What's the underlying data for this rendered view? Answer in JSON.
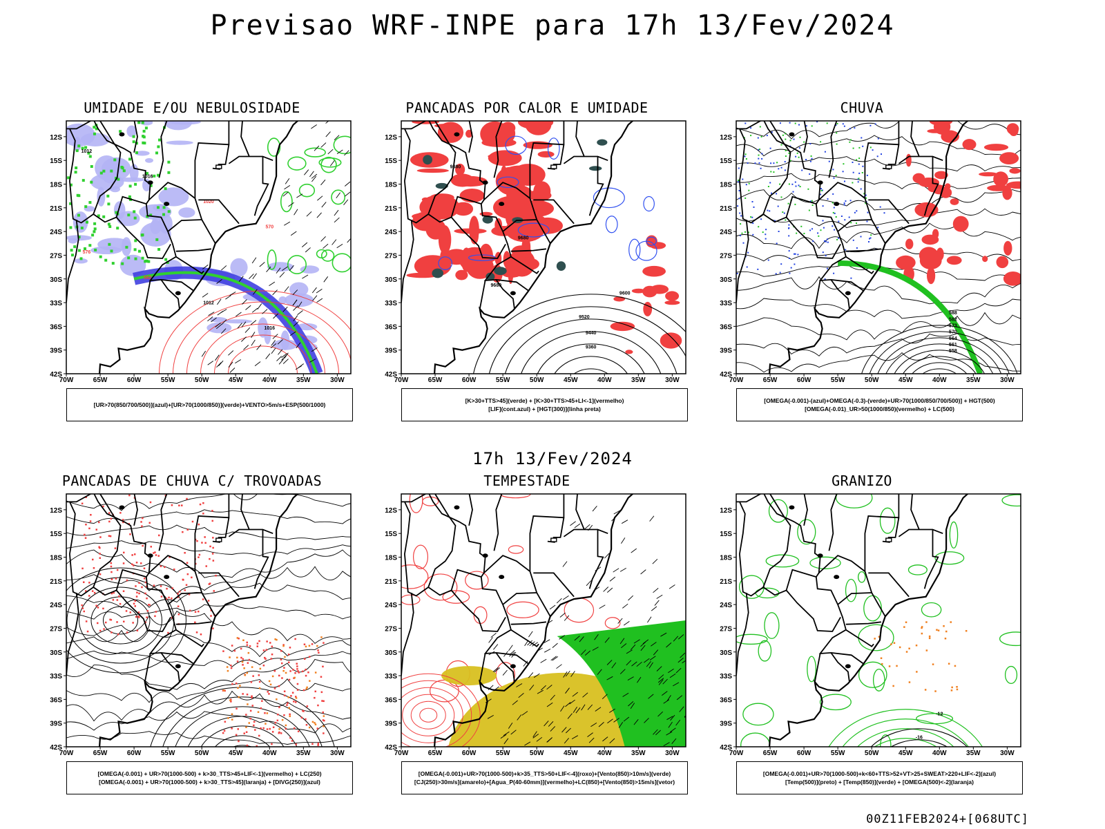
{
  "header": {
    "title": "Previsao WRF-INPE  para 17h 13/Fev/2024",
    "mid_title": "17h 13/Fev/2024",
    "footer": "00Z11FEB2024+[068UTC]"
  },
  "axes": {
    "lat_labels": [
      "12S",
      "15S",
      "18S",
      "21S",
      "24S",
      "27S",
      "30S",
      "33S",
      "36S",
      "39S",
      "42S"
    ],
    "lon_labels": [
      "70W",
      "65W",
      "60W",
      "55W",
      "50W",
      "45W",
      "40W",
      "35W",
      "30W"
    ]
  },
  "panels": [
    {
      "title": "UMIDADE E/OU NEBULOSIDADE",
      "legend": [
        "[UR>70(850/700/500)](azul)+[UR>70(1000/850)](verde)+VENTO>5m/s+ESP(500/1000)"
      ],
      "labels": [
        "1012",
        "1016",
        "1020",
        "570",
        "576",
        "582",
        "1012",
        "1016"
      ],
      "colors": {
        "blue": "#b4b4f5",
        "dark_blue": "#4040e0",
        "green": "#30d030",
        "red": "#f04040"
      }
    },
    {
      "title": "PANCADAS POR CALOR E UMIDADE",
      "legend": [
        "[K>30+TTS>45](verde)  +  [K>30+TTS>45+LI<-1](vermelho)",
        "[LIF](cont.azul)  +  [HGT(300)](linha preta)"
      ],
      "labels": [
        "9680",
        "9680",
        "9680",
        "9600",
        "9520",
        "9440",
        "9360"
      ],
      "colors": {
        "red": "#f04040",
        "dark_green": "#2f4f4f",
        "blue": "#3050f0"
      }
    },
    {
      "title": "CHUVA",
      "legend": [
        "[OMEGA(-0.001)-(azul)+OMEGA(-0.3)-(verde)+UR>70(1000/850/700/500)] + HGT(500)",
        "[OMEGA(-0.01)_UR>50(1000/850)(vermelho) + LC(500)"
      ],
      "labels": [
        "588",
        "582",
        "573",
        "570",
        "564",
        "561",
        "558"
      ],
      "colors": {
        "red": "#f04040",
        "green": "#20c020",
        "blue": "#2040e0"
      }
    },
    {
      "title": "PANCADAS DE CHUVA C/ TROVOADAS",
      "legend": [
        "[OMEGA(-0.001) + UR>70(1000-500) + k>30_TTS>45+LIF<-1](vermelho) + LC(250)",
        "[OMEGA(-0.001) + UR>70(1000-500) + k>30_TTS>45](laranja) + [DIVG(250)](azul)"
      ],
      "labels": [],
      "colors": {
        "red": "#f04040",
        "orange": "#f08020"
      }
    },
    {
      "title": "TEMPESTADE",
      "legend": [
        "[OMEGA(-0.001)+UR>70(1000-500)+k>35_TTS>50+LIF<-4](roxo)+[Vento(850)>10m/s](verde)",
        "[CJ(250)>30m/s](amarelo)+[Agua_P(40-60mm)](vermelho)+LC(850)+[Vento(850)>15m/s](vetor)"
      ],
      "labels": [],
      "colors": {
        "red": "#f04040",
        "yellow": "#d8c020",
        "green": "#20c020"
      }
    },
    {
      "title": "GRANIZO",
      "legend": [
        "[OMEGA(-0.001)+UR>70(1000-500)+k<60+TTS>52+VT>25+SWEAT>220+LIF<-2](azul)",
        "[Temp(500)](preto) + [Temp(850)](verde) + [OMEGA(500)<-2](laranja)"
      ],
      "labels": [
        "-12",
        "-16"
      ],
      "colors": {
        "green": "#20c020",
        "orange": "#f08020"
      }
    }
  ]
}
